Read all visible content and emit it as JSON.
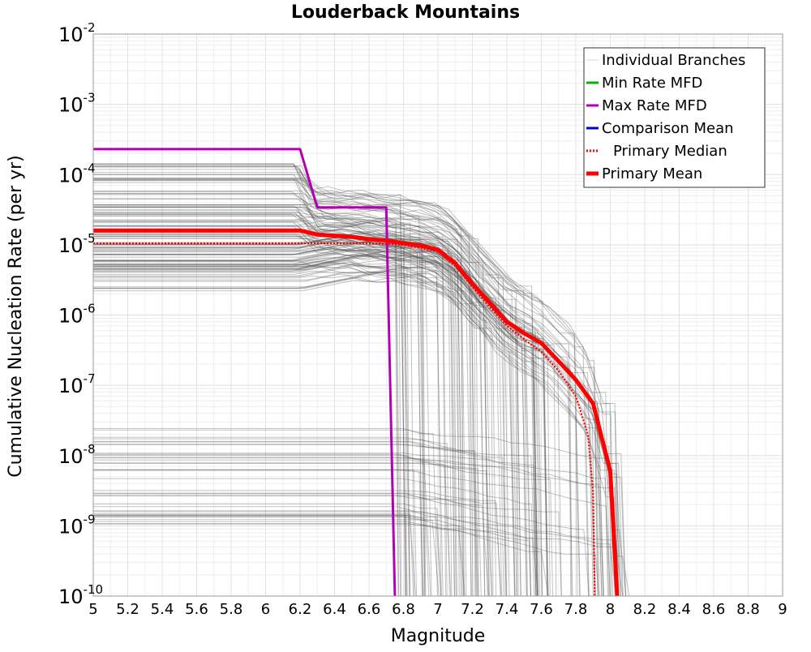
{
  "chart_data": {
    "type": "line",
    "title": "Louderback Mountains",
    "xlabel": "Magnitude",
    "ylabel": "Cumulative Nucleation Rate (per yr)",
    "xlim": [
      5,
      9
    ],
    "ylim": [
      1e-10,
      0.01
    ],
    "yscale": "log",
    "grid": true,
    "xticks": [
      "5",
      "5.2",
      "5.4",
      "5.6",
      "5.8",
      "6",
      "6.2",
      "6.4",
      "6.6",
      "6.8",
      "7",
      "7.2",
      "7.4",
      "7.6",
      "7.8",
      "8",
      "8.2",
      "8.4",
      "8.6",
      "8.8",
      "9"
    ],
    "yticks": [
      {
        "base": "10",
        "exp": "-10",
        "value": 1e-10
      },
      {
        "base": "10",
        "exp": "-9",
        "value": 1e-09
      },
      {
        "base": "10",
        "exp": "-8",
        "value": 1e-08
      },
      {
        "base": "10",
        "exp": "-7",
        "value": 1e-07
      },
      {
        "base": "10",
        "exp": "-6",
        "value": 1e-06
      },
      {
        "base": "10",
        "exp": "-5",
        "value": 1e-05
      },
      {
        "base": "10",
        "exp": "-4",
        "value": 0.0001
      },
      {
        "base": "10",
        "exp": "-3",
        "value": 0.001
      },
      {
        "base": "10",
        "exp": "-2",
        "value": 0.01
      }
    ],
    "legend_position": "top-right",
    "legend": [
      {
        "label": "Individual Branches",
        "color": "#d9d9d9",
        "style": "solid",
        "width": "thin"
      },
      {
        "label": "Min Rate MFD",
        "color": "#00b400",
        "style": "solid",
        "width": "medium"
      },
      {
        "label": "Max Rate MFD",
        "color": "#b400b4",
        "style": "solid",
        "width": "medium"
      },
      {
        "label": "Comparison Mean",
        "color": "#0000d2",
        "style": "solid",
        "width": "medium"
      },
      {
        "label": "Primary Median",
        "color": "#ff0000",
        "style": "dotted",
        "width": "medium"
      },
      {
        "label": "Primary Mean",
        "color": "#ff0000",
        "style": "solid",
        "width": "thick"
      }
    ],
    "branch_color": "#505050",
    "branch_families": [
      {
        "plateau_low": 2.2e-06,
        "plateau_high": 0.00015,
        "count": 120,
        "knee": 6.2,
        "curve_shape": "primary"
      },
      {
        "plateau_low": 1e-09,
        "plateau_high": 2.5e-08,
        "count": 40,
        "knee": 6.8,
        "curve_shape": "low"
      }
    ],
    "series": [
      {
        "name": "Max Rate MFD",
        "color": "#b400b4",
        "x": [
          5,
          6.2,
          6.3,
          6.7,
          6.75
        ],
        "y": [
          0.00023,
          0.00023,
          3.4e-05,
          3.4e-05,
          1e-10
        ]
      },
      {
        "name": "Primary Mean",
        "color": "#ff0000",
        "x": [
          5,
          6.2,
          6.3,
          6.4,
          6.5,
          6.6,
          6.7,
          6.8,
          6.9,
          7.0,
          7.1,
          7.2,
          7.3,
          7.4,
          7.5,
          7.6,
          7.7,
          7.8,
          7.9,
          8.0,
          8.04
        ],
        "y": [
          1.6e-05,
          1.6e-05,
          1.4e-05,
          1.35e-05,
          1.3e-05,
          1.2e-05,
          1.15e-05,
          1.05e-05,
          9.8e-06,
          8.5e-06,
          5.5e-06,
          2.8e-06,
          1.5e-06,
          8e-07,
          5.5e-07,
          4e-07,
          2.2e-07,
          1.2e-07,
          5.5e-08,
          6e-09,
          1e-10
        ]
      },
      {
        "name": "Primary Median",
        "color": "#ff0000",
        "x": [
          5,
          6.2,
          6.4,
          6.6,
          6.8,
          7.0,
          7.1,
          7.2,
          7.3,
          7.4,
          7.5,
          7.6,
          7.7,
          7.8,
          7.87,
          7.9,
          7.91
        ],
        "y": [
          1.05e-05,
          1.05e-05,
          1.05e-05,
          1.05e-05,
          1e-05,
          8e-06,
          5e-06,
          2.5e-06,
          1.3e-06,
          7e-07,
          4.5e-07,
          3e-07,
          1.6e-07,
          7e-08,
          2e-08,
          3e-09,
          1e-10
        ]
      }
    ]
  }
}
